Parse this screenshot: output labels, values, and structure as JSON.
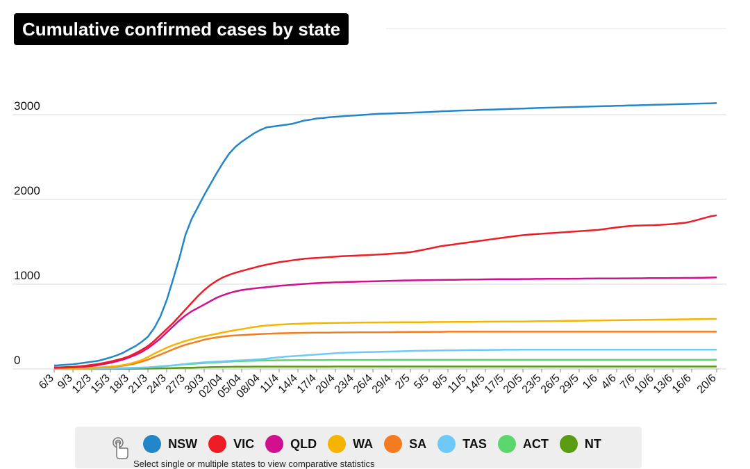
{
  "chart_data": {
    "type": "line",
    "title": "Cumulative confirmed cases by state",
    "xlabel": "",
    "ylabel": "",
    "ylim": [
      0,
      3500
    ],
    "yticks": [
      0,
      1000,
      2000,
      3000
    ],
    "ytick_labels": [
      "0",
      "1000",
      "2000",
      "3000"
    ],
    "grid": "horizontal",
    "legend_position": "bottom",
    "x": [
      "6/3",
      "7/3",
      "8/3",
      "9/3",
      "10/3",
      "11/3",
      "12/3",
      "13/3",
      "14/3",
      "15/3",
      "16/3",
      "17/3",
      "18/3",
      "19/3",
      "20/3",
      "21/3",
      "22/3",
      "23/3",
      "24/3",
      "25/3",
      "26/3",
      "27/3",
      "28/3",
      "29/3",
      "30/3",
      "31/3",
      "01/04",
      "02/04",
      "03/04",
      "04/04",
      "05/04",
      "06/04",
      "07/04",
      "08/04",
      "09/04",
      "10/04",
      "11/4",
      "12/4",
      "13/4",
      "14/4",
      "15/4",
      "16/4",
      "17/4",
      "18/4",
      "19/4",
      "20/4",
      "21/4",
      "22/4",
      "23/4",
      "24/4",
      "25/4",
      "26/4",
      "27/4",
      "28/4",
      "29/4",
      "30/4",
      "1/5",
      "2/5",
      "3/5",
      "4/5",
      "5/5",
      "6/5",
      "7/5",
      "8/5",
      "9/5",
      "10/5",
      "11/5",
      "12/5",
      "13/5",
      "14/5",
      "15/5",
      "16/5",
      "17/5",
      "18/5",
      "19/5",
      "20/5",
      "21/5",
      "22/5",
      "23/5",
      "24/5",
      "25/5",
      "26/5",
      "27/5",
      "28/5",
      "29/5",
      "30/5",
      "31/5",
      "1/6",
      "2/6",
      "3/6",
      "4/6",
      "5/6",
      "6/6",
      "7/6",
      "8/6",
      "9/6",
      "10/6",
      "11/6",
      "12/6",
      "13/6",
      "14/6",
      "15/6",
      "16/6",
      "17/6",
      "18/6",
      "19/6",
      "20/6"
    ],
    "xtick_labels": [
      "6/3",
      "9/3",
      "12/3",
      "15/3",
      "18/3",
      "21/3",
      "24/3",
      "27/3",
      "30/3",
      "02/04",
      "05/04",
      "08/04",
      "11/4",
      "14/4",
      "17/4",
      "20/4",
      "23/4",
      "26/4",
      "29/4",
      "2/5",
      "5/5",
      "8/5",
      "11/5",
      "14/5",
      "17/5",
      "20/5",
      "23/5",
      "26/5",
      "29/5",
      "1/6",
      "4/6",
      "7/6",
      "10/6",
      "13/6",
      "16/6",
      "20/6"
    ],
    "series": [
      {
        "name": "NSW",
        "color": "#2386c8",
        "values": [
          40,
          45,
          50,
          55,
          65,
          75,
          85,
          95,
          115,
          135,
          160,
          190,
          230,
          270,
          320,
          380,
          480,
          620,
          810,
          1050,
          1300,
          1580,
          1770,
          1910,
          2050,
          2180,
          2310,
          2430,
          2540,
          2620,
          2680,
          2730,
          2780,
          2820,
          2850,
          2860,
          2870,
          2880,
          2890,
          2910,
          2930,
          2940,
          2955,
          2960,
          2970,
          2975,
          2980,
          2985,
          2990,
          2995,
          3000,
          3005,
          3010,
          3012,
          3015,
          3018,
          3020,
          3022,
          3025,
          3028,
          3030,
          3035,
          3040,
          3042,
          3045,
          3048,
          3050,
          3052,
          3055,
          3058,
          3060,
          3062,
          3065,
          3068,
          3070,
          3072,
          3075,
          3078,
          3080,
          3082,
          3084,
          3086,
          3088,
          3090,
          3092,
          3094,
          3096,
          3098,
          3100,
          3102,
          3104,
          3106,
          3108,
          3110,
          3112,
          3114,
          3116,
          3118,
          3120,
          3122,
          3124,
          3126,
          3128,
          3130,
          3132,
          3134,
          3136
        ]
      },
      {
        "name": "VIC",
        "color": "#ee1c25",
        "values": [
          18,
          20,
          22,
          25,
          30,
          38,
          48,
          58,
          72,
          88,
          105,
          125,
          150,
          185,
          225,
          270,
          330,
          400,
          470,
          540,
          620,
          700,
          780,
          860,
          930,
          990,
          1040,
          1080,
          1110,
          1135,
          1155,
          1175,
          1195,
          1215,
          1230,
          1245,
          1260,
          1270,
          1280,
          1290,
          1300,
          1305,
          1310,
          1315,
          1320,
          1325,
          1330,
          1333,
          1336,
          1340,
          1343,
          1346,
          1350,
          1355,
          1360,
          1365,
          1370,
          1378,
          1390,
          1405,
          1420,
          1435,
          1450,
          1460,
          1470,
          1480,
          1490,
          1500,
          1510,
          1520,
          1530,
          1540,
          1550,
          1560,
          1570,
          1578,
          1585,
          1590,
          1595,
          1600,
          1605,
          1610,
          1615,
          1620,
          1625,
          1630,
          1635,
          1640,
          1650,
          1660,
          1670,
          1678,
          1685,
          1690,
          1693,
          1695,
          1697,
          1700,
          1705,
          1710,
          1718,
          1725,
          1740,
          1760,
          1780,
          1800,
          1812
        ]
      },
      {
        "name": "QLD",
        "color": "#d0108c",
        "values": [
          12,
          14,
          16,
          18,
          22,
          28,
          35,
          45,
          58,
          72,
          90,
          110,
          135,
          165,
          200,
          245,
          300,
          360,
          430,
          500,
          570,
          630,
          680,
          720,
          760,
          800,
          840,
          870,
          895,
          915,
          930,
          940,
          950,
          958,
          965,
          972,
          980,
          986,
          992,
          998,
          1003,
          1008,
          1012,
          1016,
          1019,
          1022,
          1024,
          1026,
          1028,
          1030,
          1032,
          1034,
          1036,
          1038,
          1040,
          1042,
          1044,
          1045,
          1046,
          1047,
          1048,
          1049,
          1050,
          1051,
          1052,
          1053,
          1054,
          1055,
          1056,
          1057,
          1058,
          1059,
          1059,
          1060,
          1060,
          1061,
          1061,
          1062,
          1062,
          1063,
          1063,
          1064,
          1064,
          1065,
          1065,
          1066,
          1066,
          1067,
          1067,
          1068,
          1068,
          1069,
          1069,
          1070,
          1070,
          1071,
          1071,
          1072,
          1072,
          1073,
          1073,
          1074,
          1074,
          1075,
          1076,
          1078,
          1080
        ]
      },
      {
        "name": "WA",
        "color": "#f5b400",
        "values": [
          5,
          6,
          7,
          8,
          10,
          12,
          15,
          18,
          22,
          28,
          35,
          45,
          60,
          80,
          105,
          140,
          180,
          215,
          250,
          280,
          305,
          330,
          350,
          370,
          385,
          400,
          415,
          430,
          445,
          458,
          470,
          482,
          495,
          505,
          512,
          518,
          522,
          526,
          530,
          533,
          536,
          538,
          540,
          541,
          542,
          543,
          544,
          545,
          546,
          547,
          548,
          548,
          549,
          549,
          550,
          550,
          551,
          551,
          552,
          552,
          553,
          553,
          554,
          554,
          555,
          555,
          556,
          556,
          557,
          557,
          558,
          558,
          559,
          559,
          560,
          560,
          561,
          562,
          563,
          564,
          565,
          566,
          567,
          568,
          569,
          570,
          571,
          572,
          573,
          574,
          575,
          576,
          577,
          578,
          579,
          580,
          581,
          582,
          583,
          584,
          585,
          586,
          587,
          588,
          589,
          590,
          590
        ]
      },
      {
        "name": "SA",
        "color": "#f47c20",
        "values": [
          5,
          6,
          7,
          8,
          10,
          12,
          14,
          17,
          20,
          24,
          30,
          38,
          50,
          65,
          85,
          110,
          140,
          170,
          200,
          230,
          260,
          285,
          305,
          325,
          345,
          360,
          372,
          382,
          390,
          396,
          400,
          404,
          408,
          412,
          415,
          418,
          420,
          422,
          424,
          425,
          426,
          427,
          428,
          429,
          429,
          430,
          430,
          431,
          431,
          432,
          432,
          433,
          433,
          434,
          434,
          435,
          435,
          436,
          436,
          437,
          437,
          438,
          438,
          439,
          439,
          439,
          439,
          439,
          439,
          439,
          439,
          439,
          439,
          439,
          439,
          439,
          439,
          439,
          439,
          439,
          439,
          439,
          439,
          439,
          439,
          439,
          439,
          439,
          439,
          439,
          439,
          439,
          439,
          439,
          439,
          439,
          439,
          439,
          439,
          439,
          439,
          439,
          439,
          439,
          439,
          439,
          439
        ]
      },
      {
        "name": "TAS",
        "color": "#6fc9f6",
        "values": [
          2,
          2,
          3,
          3,
          4,
          5,
          6,
          7,
          8,
          9,
          10,
          11,
          12,
          14,
          16,
          18,
          22,
          28,
          35,
          42,
          50,
          58,
          66,
          72,
          78,
          82,
          86,
          90,
          94,
          98,
          102,
          106,
          110,
          115,
          122,
          130,
          138,
          145,
          150,
          155,
          160,
          165,
          170,
          175,
          180,
          185,
          190,
          193,
          195,
          197,
          198,
          200,
          202,
          204,
          206,
          208,
          210,
          212,
          214,
          215,
          216,
          217,
          218,
          219,
          220,
          221,
          222,
          223,
          224,
          224,
          225,
          225,
          226,
          226,
          226,
          227,
          227,
          227,
          227,
          228,
          228,
          228,
          228,
          228,
          228,
          228,
          228,
          228,
          228,
          228,
          228,
          228,
          228,
          228,
          228,
          228,
          228,
          228,
          228,
          228,
          228,
          228,
          228,
          228,
          228,
          228,
          228
        ]
      },
      {
        "name": "ACT",
        "color": "#5bd66c",
        "values": [
          1,
          1,
          1,
          2,
          2,
          3,
          3,
          4,
          5,
          6,
          7,
          8,
          10,
          12,
          15,
          19,
          24,
          30,
          36,
          42,
          48,
          54,
          60,
          65,
          70,
          74,
          78,
          82,
          86,
          90,
          93,
          95,
          97,
          99,
          100,
          101,
          102,
          103,
          103,
          104,
          104,
          105,
          105,
          105,
          106,
          106,
          106,
          106,
          106,
          106,
          106,
          106,
          106,
          107,
          107,
          107,
          107,
          107,
          107,
          107,
          107,
          107,
          107,
          107,
          107,
          107,
          107,
          107,
          107,
          107,
          107,
          107,
          107,
          107,
          107,
          107,
          107,
          107,
          107,
          107,
          107,
          107,
          107,
          107,
          107,
          107,
          107,
          107,
          107,
          107,
          107,
          107,
          107,
          107,
          107,
          107,
          107,
          107,
          107,
          107,
          107,
          107,
          107,
          107,
          107,
          107,
          108
        ]
      },
      {
        "name": "NT",
        "color": "#5a9b14",
        "values": [
          0,
          0,
          0,
          0,
          0,
          0,
          0,
          0,
          0,
          1,
          1,
          1,
          1,
          2,
          3,
          4,
          5,
          6,
          8,
          10,
          12,
          14,
          15,
          17,
          19,
          21,
          22,
          24,
          25,
          26,
          27,
          27,
          28,
          28,
          28,
          28,
          28,
          28,
          28,
          28,
          28,
          28,
          28,
          28,
          28,
          29,
          29,
          29,
          29,
          29,
          29,
          29,
          29,
          29,
          29,
          29,
          29,
          29,
          29,
          29,
          29,
          29,
          29,
          29,
          29,
          29,
          29,
          29,
          29,
          29,
          29,
          29,
          29,
          29,
          29,
          29,
          29,
          29,
          29,
          29,
          29,
          29,
          29,
          29,
          29,
          29,
          29,
          29,
          29,
          29,
          29,
          29,
          29,
          29,
          29,
          29,
          29,
          29,
          29,
          29,
          29,
          29,
          29,
          29,
          29,
          29,
          29
        ]
      }
    ]
  },
  "legend": {
    "hint_icon": "pointer-hand-icon",
    "hint_text": "Select single or multiple states to view comparative statistics"
  }
}
